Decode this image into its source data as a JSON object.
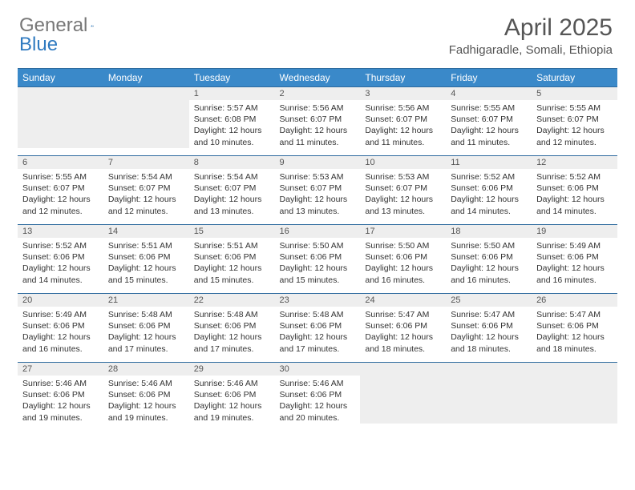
{
  "logo": {
    "general": "General",
    "blue": "Blue",
    "mark_color": "#2f7ac0"
  },
  "title": "April 2025",
  "location": "Fadhigaradle, Somali, Ethiopia",
  "colors": {
    "header_bg": "#3a89c9",
    "header_text": "#ffffff",
    "daynum_bg": "#eeeeee",
    "border": "#2d6a9e",
    "body_text": "#333333",
    "title_text": "#555555"
  },
  "weekdays": [
    "Sunday",
    "Monday",
    "Tuesday",
    "Wednesday",
    "Thursday",
    "Friday",
    "Saturday"
  ],
  "weeks": [
    [
      null,
      null,
      {
        "n": "1",
        "sr": "5:57 AM",
        "ss": "6:08 PM",
        "dl": "12 hours and 10 minutes."
      },
      {
        "n": "2",
        "sr": "5:56 AM",
        "ss": "6:07 PM",
        "dl": "12 hours and 11 minutes."
      },
      {
        "n": "3",
        "sr": "5:56 AM",
        "ss": "6:07 PM",
        "dl": "12 hours and 11 minutes."
      },
      {
        "n": "4",
        "sr": "5:55 AM",
        "ss": "6:07 PM",
        "dl": "12 hours and 11 minutes."
      },
      {
        "n": "5",
        "sr": "5:55 AM",
        "ss": "6:07 PM",
        "dl": "12 hours and 12 minutes."
      }
    ],
    [
      {
        "n": "6",
        "sr": "5:55 AM",
        "ss": "6:07 PM",
        "dl": "12 hours and 12 minutes."
      },
      {
        "n": "7",
        "sr": "5:54 AM",
        "ss": "6:07 PM",
        "dl": "12 hours and 12 minutes."
      },
      {
        "n": "8",
        "sr": "5:54 AM",
        "ss": "6:07 PM",
        "dl": "12 hours and 13 minutes."
      },
      {
        "n": "9",
        "sr": "5:53 AM",
        "ss": "6:07 PM",
        "dl": "12 hours and 13 minutes."
      },
      {
        "n": "10",
        "sr": "5:53 AM",
        "ss": "6:07 PM",
        "dl": "12 hours and 13 minutes."
      },
      {
        "n": "11",
        "sr": "5:52 AM",
        "ss": "6:06 PM",
        "dl": "12 hours and 14 minutes."
      },
      {
        "n": "12",
        "sr": "5:52 AM",
        "ss": "6:06 PM",
        "dl": "12 hours and 14 minutes."
      }
    ],
    [
      {
        "n": "13",
        "sr": "5:52 AM",
        "ss": "6:06 PM",
        "dl": "12 hours and 14 minutes."
      },
      {
        "n": "14",
        "sr": "5:51 AM",
        "ss": "6:06 PM",
        "dl": "12 hours and 15 minutes."
      },
      {
        "n": "15",
        "sr": "5:51 AM",
        "ss": "6:06 PM",
        "dl": "12 hours and 15 minutes."
      },
      {
        "n": "16",
        "sr": "5:50 AM",
        "ss": "6:06 PM",
        "dl": "12 hours and 15 minutes."
      },
      {
        "n": "17",
        "sr": "5:50 AM",
        "ss": "6:06 PM",
        "dl": "12 hours and 16 minutes."
      },
      {
        "n": "18",
        "sr": "5:50 AM",
        "ss": "6:06 PM",
        "dl": "12 hours and 16 minutes."
      },
      {
        "n": "19",
        "sr": "5:49 AM",
        "ss": "6:06 PM",
        "dl": "12 hours and 16 minutes."
      }
    ],
    [
      {
        "n": "20",
        "sr": "5:49 AM",
        "ss": "6:06 PM",
        "dl": "12 hours and 16 minutes."
      },
      {
        "n": "21",
        "sr": "5:48 AM",
        "ss": "6:06 PM",
        "dl": "12 hours and 17 minutes."
      },
      {
        "n": "22",
        "sr": "5:48 AM",
        "ss": "6:06 PM",
        "dl": "12 hours and 17 minutes."
      },
      {
        "n": "23",
        "sr": "5:48 AM",
        "ss": "6:06 PM",
        "dl": "12 hours and 17 minutes."
      },
      {
        "n": "24",
        "sr": "5:47 AM",
        "ss": "6:06 PM",
        "dl": "12 hours and 18 minutes."
      },
      {
        "n": "25",
        "sr": "5:47 AM",
        "ss": "6:06 PM",
        "dl": "12 hours and 18 minutes."
      },
      {
        "n": "26",
        "sr": "5:47 AM",
        "ss": "6:06 PM",
        "dl": "12 hours and 18 minutes."
      }
    ],
    [
      {
        "n": "27",
        "sr": "5:46 AM",
        "ss": "6:06 PM",
        "dl": "12 hours and 19 minutes."
      },
      {
        "n": "28",
        "sr": "5:46 AM",
        "ss": "6:06 PM",
        "dl": "12 hours and 19 minutes."
      },
      {
        "n": "29",
        "sr": "5:46 AM",
        "ss": "6:06 PM",
        "dl": "12 hours and 19 minutes."
      },
      {
        "n": "30",
        "sr": "5:46 AM",
        "ss": "6:06 PM",
        "dl": "12 hours and 20 minutes."
      },
      null,
      null,
      null
    ]
  ],
  "labels": {
    "sunrise": "Sunrise:",
    "sunset": "Sunset:",
    "daylight": "Daylight:"
  }
}
